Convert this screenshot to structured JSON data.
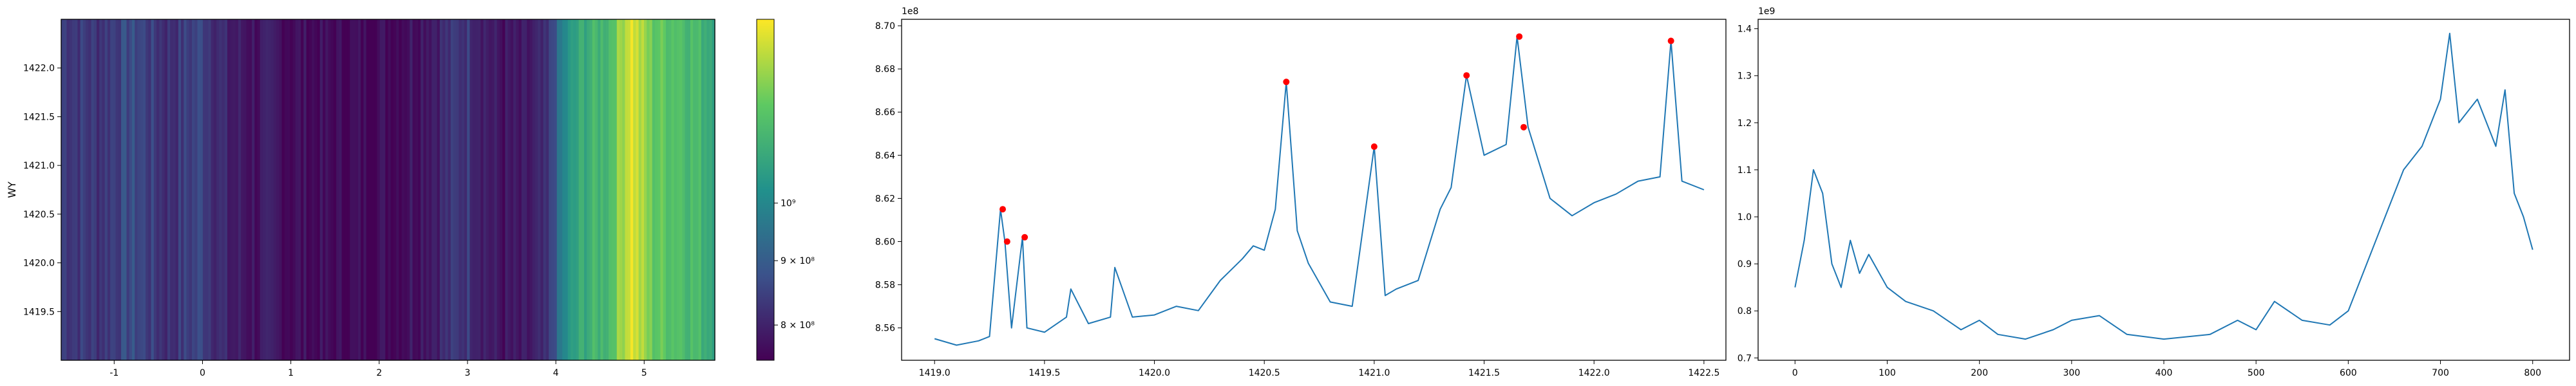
{
  "chart_data": [
    {
      "type": "heatmap",
      "ylabel": "WY",
      "xlim": [
        -1.6,
        5.8
      ],
      "ylim": [
        1419.0,
        1422.5
      ],
      "xticks": [
        "-1",
        "0",
        "1",
        "2",
        "3",
        "4",
        "5"
      ],
      "yticks": [
        "1419.5",
        "1420.0",
        "1420.5",
        "1421.0",
        "1421.5",
        "1422.0"
      ],
      "colormap": "viridis",
      "colorbar_scale": "log",
      "colorbar_range": [
        750000000,
        1400000000
      ],
      "colorbar_ticks": [
        "8 × 10⁸",
        "9 × 10⁸",
        "10⁹"
      ],
      "column_profile": {
        "x": [
          -1.6,
          -1.2,
          -0.8,
          -0.4,
          0.0,
          0.3,
          0.6,
          1.0,
          1.4,
          1.8,
          2.2,
          2.6,
          3.0,
          3.3,
          3.6,
          3.9,
          4.1,
          4.3,
          4.6,
          4.85,
          4.95,
          5.1,
          5.4,
          5.8
        ],
        "values": [
          850000000,
          830000000,
          870000000,
          820000000,
          860000000,
          790000000,
          780000000,
          770000000,
          760000000,
          760000000,
          770000000,
          800000000,
          840000000,
          780000000,
          770000000,
          800000000,
          1000000000,
          1100000000,
          1150000000,
          1380000000,
          1300000000,
          1200000000,
          1180000000,
          1100000000
        ]
      }
    },
    {
      "type": "line",
      "offset_label": "1e8",
      "xlim": [
        1418.85,
        1422.6
      ],
      "ylim": [
        8.545,
        8.703
      ],
      "xticks": [
        "1419.0",
        "1419.5",
        "1420.0",
        "1420.5",
        "1421.0",
        "1421.5",
        "1422.0",
        "1422.5"
      ],
      "yticks": [
        "8.56",
        "8.58",
        "8.60",
        "8.62",
        "8.64",
        "8.66",
        "8.68",
        "8.70"
      ],
      "series_color": "#1f77b4",
      "marker_color": "#ff0000",
      "x": [
        1419.0,
        1419.1,
        1419.2,
        1419.25,
        1419.3,
        1419.32,
        1419.35,
        1419.4,
        1419.42,
        1419.5,
        1419.6,
        1419.62,
        1419.7,
        1419.8,
        1419.82,
        1419.9,
        1420.0,
        1420.1,
        1420.2,
        1420.3,
        1420.4,
        1420.45,
        1420.5,
        1420.55,
        1420.6,
        1420.65,
        1420.7,
        1420.8,
        1420.9,
        1421.0,
        1421.05,
        1421.1,
        1421.2,
        1421.3,
        1421.35,
        1421.42,
        1421.5,
        1421.6,
        1421.65,
        1421.7,
        1421.8,
        1421.9,
        1422.0,
        1422.1,
        1422.2,
        1422.3,
        1422.35,
        1422.4,
        1422.5
      ],
      "values": [
        8.555,
        8.552,
        8.554,
        8.556,
        8.615,
        8.6,
        8.56,
        8.602,
        8.56,
        8.558,
        8.565,
        8.578,
        8.562,
        8.565,
        8.588,
        8.565,
        8.566,
        8.57,
        8.568,
        8.582,
        8.592,
        8.598,
        8.596,
        8.615,
        8.674,
        8.605,
        8.59,
        8.572,
        8.57,
        8.644,
        8.575,
        8.578,
        8.582,
        8.615,
        8.625,
        8.677,
        8.64,
        8.645,
        8.695,
        8.653,
        8.62,
        8.612,
        8.618,
        8.622,
        8.628,
        8.63,
        8.693,
        8.628,
        8.624
      ],
      "markers_x": [
        1419.31,
        1419.33,
        1419.41,
        1420.6,
        1421.0,
        1421.42,
        1421.66,
        1421.68,
        1422.35
      ],
      "markers_y": [
        8.615,
        8.6,
        8.602,
        8.674,
        8.644,
        8.677,
        8.695,
        8.653,
        8.693
      ]
    },
    {
      "type": "line",
      "offset_label": "1e9",
      "xlim": [
        -40,
        840
      ],
      "ylim": [
        0.695,
        1.42
      ],
      "xticks": [
        "0",
        "100",
        "200",
        "300",
        "400",
        "500",
        "600",
        "700",
        "800"
      ],
      "yticks": [
        "0.7",
        "0.8",
        "0.9",
        "1.0",
        "1.1",
        "1.2",
        "1.3",
        "1.4"
      ],
      "series_color": "#1f77b4",
      "x": [
        0,
        10,
        20,
        30,
        40,
        50,
        60,
        70,
        80,
        100,
        120,
        150,
        180,
        200,
        220,
        250,
        280,
        300,
        330,
        360,
        400,
        450,
        480,
        500,
        520,
        550,
        580,
        600,
        620,
        640,
        660,
        680,
        700,
        710,
        720,
        740,
        760,
        770,
        780,
        790,
        800
      ],
      "values": [
        0.85,
        0.95,
        1.1,
        1.05,
        0.9,
        0.85,
        0.95,
        0.88,
        0.92,
        0.85,
        0.82,
        0.8,
        0.76,
        0.78,
        0.75,
        0.74,
        0.76,
        0.78,
        0.79,
        0.75,
        0.74,
        0.75,
        0.78,
        0.76,
        0.82,
        0.78,
        0.77,
        0.8,
        0.9,
        1.0,
        1.1,
        1.15,
        1.25,
        1.39,
        1.2,
        1.25,
        1.15,
        1.27,
        1.05,
        1.0,
        0.93
      ]
    }
  ]
}
